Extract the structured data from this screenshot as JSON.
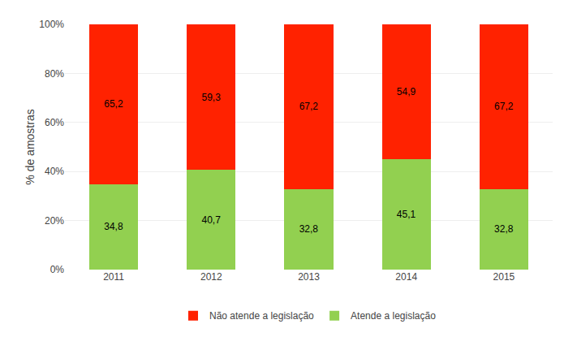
{
  "chart_data": {
    "type": "bar",
    "stacked": true,
    "categories": [
      "2011",
      "2012",
      "2013",
      "2014",
      "2015"
    ],
    "series": [
      {
        "name": "Atende a legislação",
        "color": "#92D050",
        "values": [
          34.8,
          40.7,
          32.8,
          45.1,
          32.8
        ],
        "value_labels": [
          "34,8",
          "40,7",
          "32,8",
          "45,1",
          "32,8"
        ]
      },
      {
        "name": "Não atende a legislação",
        "color": "#FF2200",
        "values": [
          65.2,
          59.3,
          67.2,
          54.9,
          67.2
        ],
        "value_labels": [
          "65,2",
          "59,3",
          "67,2",
          "54,9",
          "67,2"
        ]
      }
    ],
    "ylabel": "% de amostras",
    "ylim": [
      0,
      100
    ],
    "yticks": [
      {
        "value": 0,
        "label": "0%"
      },
      {
        "value": 20,
        "label": "20%"
      },
      {
        "value": 40,
        "label": "40%"
      },
      {
        "value": 60,
        "label": "60%"
      },
      {
        "value": 80,
        "label": "80%"
      },
      {
        "value": 100,
        "label": "100%"
      }
    ],
    "grid": true,
    "legend": "bottom",
    "data_labels": true
  }
}
